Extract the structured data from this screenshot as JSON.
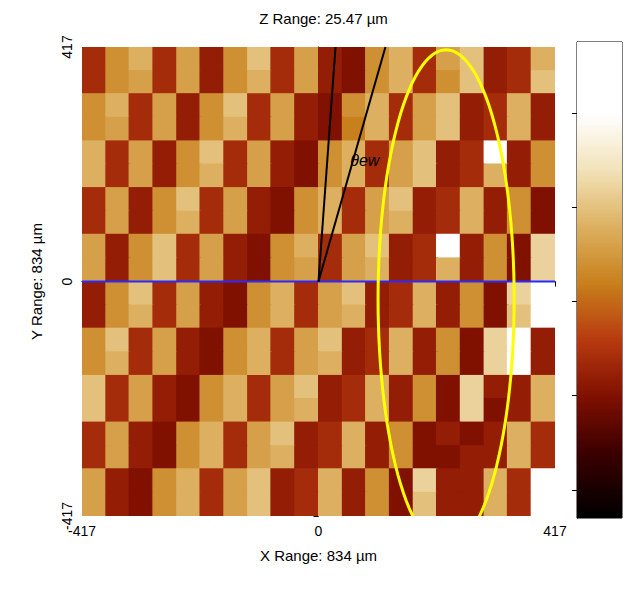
{
  "chart_data": {
    "type": "heatmap",
    "title": "Z Range: 25.47 µm",
    "x_label": "X Range: 834 µm",
    "y_label": "Y Range: 834 µm",
    "xlim": [
      -417,
      417
    ],
    "ylim": [
      -417,
      417
    ],
    "xticks": [
      -417,
      0,
      417
    ],
    "yticks": [
      -417,
      0,
      417
    ],
    "grid": false,
    "x": [
      -396,
      -354,
      -313,
      -271,
      -229,
      -188,
      -146,
      -104,
      -63,
      -21,
      21,
      63,
      104,
      146,
      188,
      229,
      271,
      313,
      354,
      396
    ],
    "y": [
      396,
      354,
      313,
      271,
      229,
      188,
      146,
      104,
      63,
      21,
      -21,
      -63,
      -104,
      -146,
      -188,
      -229,
      -271,
      -313,
      -354,
      -396
    ],
    "z": [
      [
        -3,
        2,
        4,
        -3,
        3,
        -4,
        2,
        5,
        -3,
        3,
        -4,
        -5,
        2,
        4,
        -3,
        3,
        5,
        -4,
        -3,
        4
      ],
      [
        -3,
        2,
        3,
        -3,
        3,
        -4,
        2,
        4,
        -3,
        3,
        -4,
        -5,
        2,
        4,
        -3,
        2,
        5,
        -4,
        -3,
        5
      ],
      [
        2,
        4,
        -3,
        3,
        -4,
        2,
        5,
        -3,
        3,
        -4,
        -5,
        2,
        4,
        -3,
        3,
        5,
        -4,
        -3,
        4,
        -4
      ],
      [
        2,
        3,
        -3,
        3,
        -4,
        2,
        4,
        -3,
        3,
        -4,
        -5,
        1,
        4,
        -3,
        3,
        5,
        -4,
        -3,
        4,
        -4
      ],
      [
        4,
        -3,
        3,
        -4,
        2,
        5,
        -3,
        3,
        -4,
        -5,
        2,
        4,
        -3,
        3,
        5,
        -4,
        -3,
        13,
        -4,
        2
      ],
      [
        4,
        -3,
        3,
        -4,
        2,
        4,
        -3,
        3,
        -4,
        -5,
        2,
        4,
        -3,
        3,
        5,
        -4,
        -3,
        4,
        -4,
        2
      ],
      [
        -3,
        3,
        -4,
        2,
        5,
        -3,
        3,
        -4,
        -5,
        2,
        4,
        -3,
        3,
        5,
        -4,
        -3,
        4,
        -4,
        2,
        -5
      ],
      [
        -3,
        3,
        -4,
        2,
        4,
        -3,
        3,
        -4,
        -5,
        2,
        4,
        -3,
        3,
        4,
        -4,
        -3,
        4,
        -4,
        2,
        -5
      ],
      [
        3,
        -4,
        2,
        5,
        -3,
        3,
        -4,
        -5,
        2,
        4,
        -3,
        3,
        5,
        -4,
        -3,
        13,
        -4,
        2,
        -5,
        6
      ],
      [
        3,
        -4,
        2,
        5,
        -3,
        3,
        -4,
        -5,
        2,
        3,
        -3,
        3,
        4,
        -4,
        -3,
        4,
        -4,
        2,
        -5,
        6
      ],
      [
        -4,
        2,
        5,
        -3,
        3,
        -4,
        -5,
        2,
        4,
        -3,
        3,
        5,
        -4,
        -3,
        4,
        -4,
        2,
        -5,
        6,
        13
      ],
      [
        -4,
        2,
        4,
        -3,
        3,
        -4,
        -5,
        2,
        4,
        -3,
        3,
        4,
        -4,
        -3,
        4,
        -4,
        2,
        -5,
        5,
        13
      ],
      [
        2,
        5,
        -3,
        3,
        -4,
        -5,
        2,
        4,
        -3,
        3,
        5,
        -4,
        -3,
        4,
        -4,
        2,
        -5,
        6,
        13,
        -4
      ],
      [
        2,
        4,
        -3,
        3,
        -4,
        -5,
        2,
        4,
        -3,
        3,
        4,
        -4,
        -3,
        4,
        -4,
        2,
        -5,
        6,
        13,
        -4
      ],
      [
        5,
        -3,
        3,
        -4,
        -5,
        2,
        4,
        -3,
        3,
        5,
        -4,
        -3,
        4,
        -4,
        2,
        -5,
        6,
        -4,
        -4,
        4
      ],
      [
        5,
        -3,
        3,
        -4,
        -5,
        2,
        4,
        -3,
        3,
        4,
        -4,
        -3,
        4,
        -4,
        2,
        -5,
        6,
        -5,
        -4,
        4
      ],
      [
        -3,
        3,
        -4,
        -5,
        2,
        4,
        -3,
        3,
        5,
        -4,
        -3,
        4,
        -4,
        2,
        -5,
        -4,
        -5,
        -4,
        4,
        -3
      ],
      [
        -3,
        3,
        -4,
        -5,
        2,
        4,
        -3,
        3,
        4,
        -4,
        -3,
        4,
        -4,
        2,
        -5,
        -5,
        -4,
        -4,
        4,
        -3
      ],
      [
        3,
        -4,
        -5,
        2,
        4,
        -3,
        3,
        5,
        -4,
        -3,
        4,
        -4,
        2,
        -5,
        6,
        -4,
        -4,
        4,
        -3,
        13
      ],
      [
        3,
        -4,
        -5,
        2,
        4,
        -3,
        3,
        5,
        -4,
        -3,
        4,
        -4,
        2,
        -5,
        5,
        -4,
        -4,
        4,
        -3,
        13
      ]
    ],
    "colorbar": {
      "range": [
        -11.5,
        13.8
      ],
      "ticks": [
        -10,
        -5,
        0,
        5,
        10
      ]
    },
    "colorscale": [
      [
        -11.5,
        "#000000"
      ],
      [
        -8,
        "#3c0000"
      ],
      [
        -5,
        "#801000"
      ],
      [
        -2,
        "#b83a10"
      ],
      [
        1,
        "#c8801c"
      ],
      [
        4,
        "#dcb060"
      ],
      [
        7,
        "#f2e2b8"
      ],
      [
        10,
        "#ffffff"
      ],
      [
        13.8,
        "#ffffff"
      ]
    ],
    "annotations": {
      "lines": [
        {
          "color": "#2a2aff",
          "points": [
            [
              -417,
              0
            ],
            [
              417,
              0
            ]
          ]
        },
        {
          "color": "#000000",
          "points": [
            [
              0,
              0
            ],
            [
              30,
              417
            ]
          ]
        },
        {
          "color": "#000000",
          "points": [
            [
              0,
              0
            ],
            [
              118,
              417
            ]
          ]
        }
      ],
      "ellipse": {
        "color": "#ffff00",
        "center": [
          225,
          -31
        ],
        "radii": [
          120,
          443
        ]
      },
      "text": {
        "text": "θew",
        "position": [
          56,
          216
        ],
        "color": "#000000"
      }
    }
  }
}
